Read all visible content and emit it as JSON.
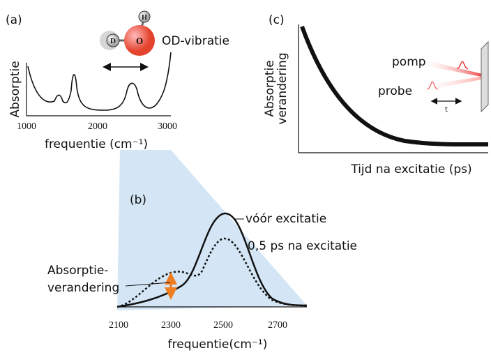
{
  "panel_a": {
    "label": "(a)",
    "y_label": "Absorptie",
    "x_label": "frequentie (cm⁻¹)",
    "molecule_atoms": [
      "D",
      "O",
      "H"
    ],
    "vibration_label": "OD-vibratie",
    "x_ticks": [
      "1000",
      "2000",
      "3000"
    ]
  },
  "panel_b": {
    "label": "(b)",
    "x_label": "frequentie(cm⁻¹)",
    "x_ticks": [
      "2100",
      "2300",
      "2500",
      "2700"
    ],
    "curve_solid_label": "vóór excitatie",
    "curve_dotted_label": "0,5 ps na excitatie",
    "change_label": [
      "Absorptie-",
      "verandering"
    ]
  },
  "panel_c": {
    "label": "(c)",
    "y_label": [
      "Absorptie",
      "verandering"
    ],
    "x_label": "Tijd na excitatie (ps)",
    "pump_label": "pomp",
    "probe_label": "probe",
    "delay_label": "t"
  }
}
